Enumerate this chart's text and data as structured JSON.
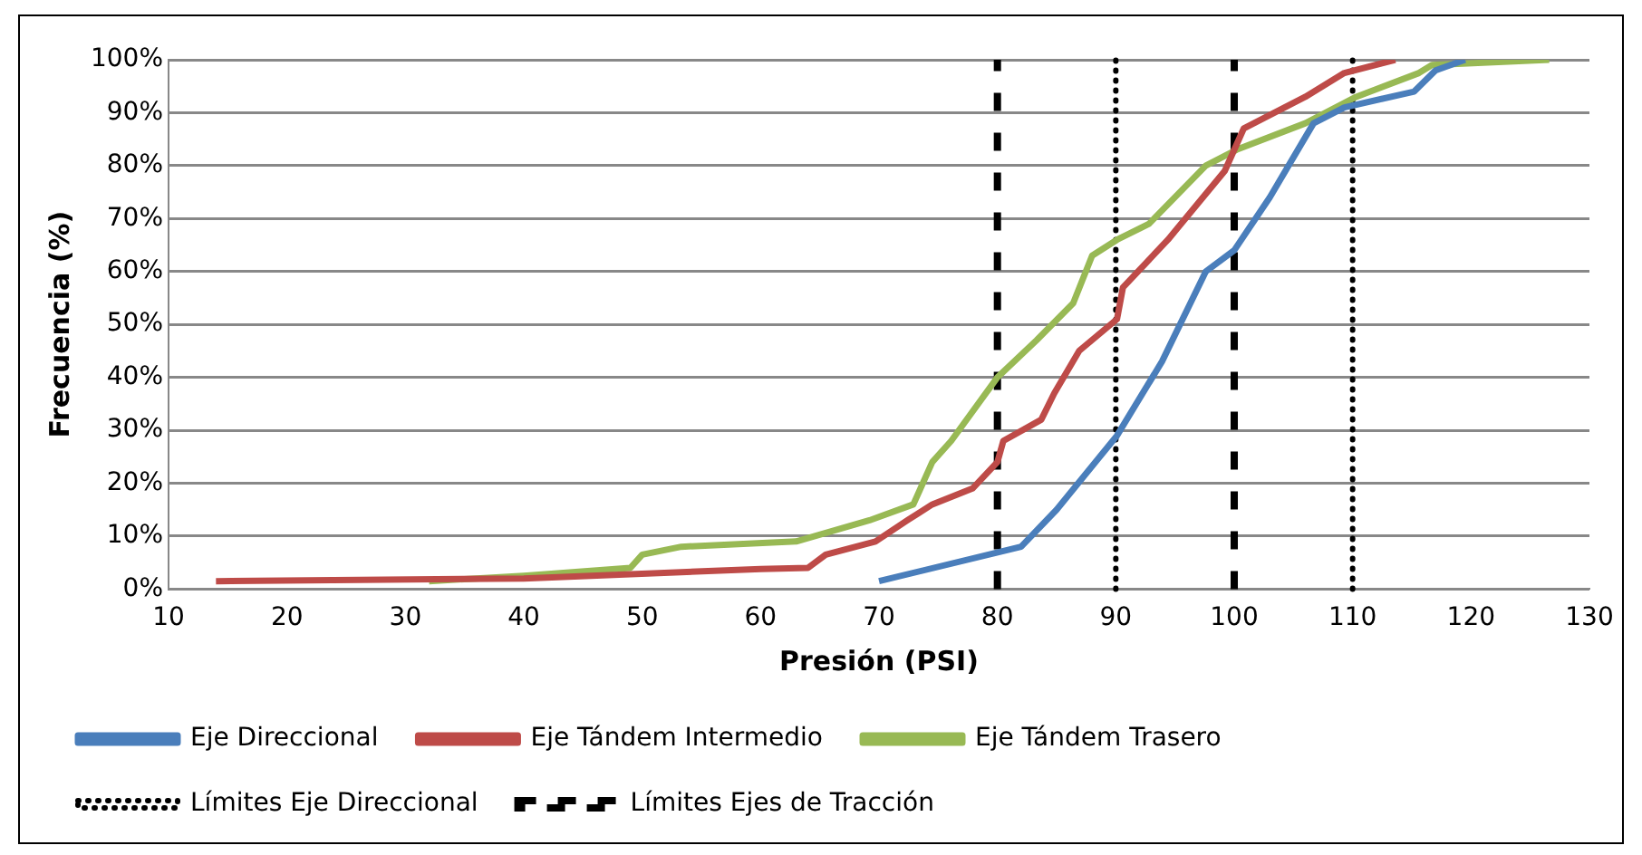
{
  "chart_data": {
    "type": "line",
    "xlabel": "Presión (PSI)",
    "ylabel": "Frecuencia (%)",
    "xlim": [
      10,
      130
    ],
    "xticks": [
      10,
      20,
      30,
      40,
      50,
      60,
      70,
      80,
      90,
      100,
      110,
      120,
      130
    ],
    "ylim": [
      0,
      100
    ],
    "yticks": [
      {
        "value": 0,
        "label": "0%"
      },
      {
        "value": 10,
        "label": "10%"
      },
      {
        "value": 20,
        "label": "20%"
      },
      {
        "value": 30,
        "label": "30%"
      },
      {
        "value": 40,
        "label": "40%"
      },
      {
        "value": 50,
        "label": "50%"
      },
      {
        "value": 60,
        "label": "60%"
      },
      {
        "value": 70,
        "label": "70%"
      },
      {
        "value": 80,
        "label": "80%"
      },
      {
        "value": 90,
        "label": "90%"
      },
      {
        "value": 100,
        "label": "100%"
      }
    ],
    "grid": "y",
    "legend": "bottom",
    "marker": "none",
    "series": [
      {
        "name": "Eje Direccional",
        "color": "#4a7ebb",
        "line_style": "solid",
        "x": [
          70,
          82,
          85,
          90.1,
          93.9,
          97.6,
          100,
          103,
          106.7,
          109.3,
          115.2,
          117,
          119.5
        ],
        "values": [
          1.5,
          8,
          15,
          29,
          43,
          60,
          64,
          74,
          88,
          91,
          94,
          98,
          100
        ]
      },
      {
        "name": "Eje Tándem Intermedio",
        "color": "#be4b48",
        "line_style": "solid",
        "x": [
          14,
          40,
          60,
          64,
          65.5,
          69.7,
          72.4,
          74.5,
          77.9,
          80,
          80.5,
          83.7,
          84.8,
          86.9,
          90.1,
          90.6,
          94.4,
          99.2,
          100.8,
          106,
          109.3,
          113.6
        ],
        "values": [
          1.5,
          2,
          3.8,
          4,
          6.5,
          9,
          13,
          16,
          19,
          24,
          28,
          32,
          37,
          45,
          51,
          57,
          66,
          79,
          87,
          93,
          97.5,
          100
        ]
      },
      {
        "name": "Eje Tándem Trasero",
        "color": "#98b954",
        "line_style": "solid",
        "x": [
          32,
          40,
          49,
          50,
          53.3,
          63,
          69.2,
          72.9,
          74.5,
          76.1,
          80,
          83.3,
          86.4,
          88,
          90.1,
          92.8,
          97.6,
          100.2,
          106,
          110.3,
          115.6,
          116.7,
          126.6
        ],
        "values": [
          1.5,
          2.5,
          4,
          6.5,
          8,
          9,
          13,
          16,
          24,
          28,
          40,
          47,
          54,
          63,
          66,
          69,
          80,
          83,
          88,
          93,
          97.5,
          99,
          100
        ]
      }
    ],
    "ref_lines": [
      {
        "axis": "x",
        "value": 90,
        "label": "Límites Eje Direccional",
        "color": "#000000",
        "line_style": "dotted"
      },
      {
        "axis": "x",
        "value": 110,
        "color": "#000000",
        "line_style": "dotted"
      },
      {
        "axis": "x",
        "value": 80,
        "label": "Límites Ejes de Tracción",
        "color": "#000000",
        "line_style": "dashed"
      },
      {
        "axis": "x",
        "value": 100,
        "color": "#000000",
        "line_style": "dashed"
      }
    ]
  }
}
